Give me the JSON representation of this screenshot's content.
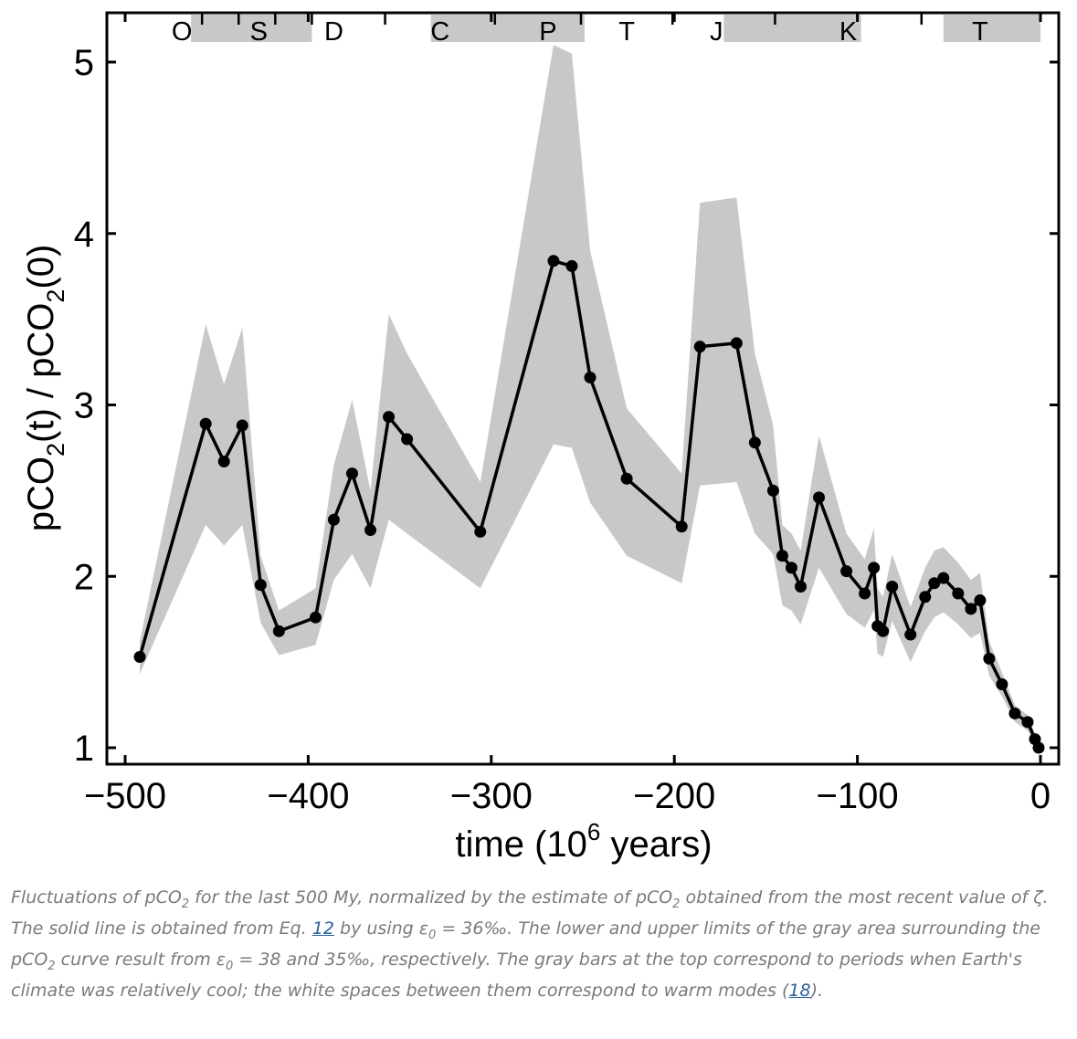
{
  "chart_data": {
    "type": "line",
    "xlabel_main": "time (10",
    "xlabel_exp": "6",
    "xlabel_tail": " years)",
    "ylabel_a": "pCO",
    "ylabel_sub_a": "2",
    "ylabel_b": "(t) / pCO",
    "ylabel_sub_b": "2",
    "ylabel_c": "(0)",
    "xlim": [
      -500,
      0
    ],
    "ylim": [
      1,
      5
    ],
    "xticks": [
      -500,
      -400,
      -300,
      -200,
      -100,
      0
    ],
    "xtick_labels": [
      "−500",
      "−400",
      "−300",
      "−200",
      "−100",
      "0"
    ],
    "yticks": [
      1,
      2,
      3,
      4,
      5
    ],
    "ytick_labels": [
      "1",
      "2",
      "3",
      "4",
      "5"
    ],
    "periods": [
      {
        "label": "O",
        "x": -469
      },
      {
        "label": "S",
        "x": -427
      },
      {
        "label": "D",
        "x": -386
      },
      {
        "label": "C",
        "x": -328
      },
      {
        "label": "P",
        "x": -269
      },
      {
        "label": "T",
        "x": -226
      },
      {
        "label": "J",
        "x": -177
      },
      {
        "label": "K",
        "x": -105
      },
      {
        "label": "T",
        "x": -33
      }
    ],
    "period_boundaries": [
      -458,
      -438,
      -418,
      -398,
      -358,
      -298,
      -251,
      -201,
      -145,
      -65
    ],
    "cool_bars": [
      [
        -464,
        -398
      ],
      [
        -333,
        -249
      ],
      [
        -173,
        -98
      ],
      [
        -53,
        0
      ]
    ],
    "series": [
      {
        "x": [
          -492,
          -456,
          -446,
          -436,
          -426,
          -416,
          -396,
          -386,
          -376,
          -366,
          -356,
          -346,
          -306,
          -266,
          -256,
          -246,
          -226,
          -196,
          -186,
          -166,
          -156,
          -146,
          -141,
          -136,
          -131,
          -121,
          -106,
          -96,
          -91,
          -89,
          -86,
          -81,
          -71,
          -63,
          -58,
          -53,
          -45,
          -38,
          -33,
          -28,
          -21,
          -14,
          -7,
          -3,
          -1
        ],
        "y": [
          1.53,
          2.89,
          2.67,
          2.88,
          1.95,
          1.68,
          1.76,
          2.33,
          2.6,
          2.27,
          2.93,
          2.8,
          2.26,
          3.84,
          3.81,
          3.16,
          2.57,
          2.29,
          3.34,
          3.36,
          2.78,
          2.5,
          2.12,
          2.05,
          1.94,
          2.46,
          2.03,
          1.9,
          2.05,
          1.71,
          1.68,
          1.94,
          1.66,
          1.88,
          1.96,
          1.99,
          1.9,
          1.81,
          1.86,
          1.52,
          1.37,
          1.2,
          1.15,
          1.05,
          1.0
        ]
      }
    ],
    "uncertainty_band": {
      "upper": [
        [
          -492,
          1.62
        ],
        [
          -456,
          3.47
        ],
        [
          -446,
          3.12
        ],
        [
          -436,
          3.45
        ],
        [
          -426,
          2.12
        ],
        [
          -416,
          1.8
        ],
        [
          -396,
          1.93
        ],
        [
          -386,
          2.65
        ],
        [
          -376,
          3.03
        ],
        [
          -366,
          2.5
        ],
        [
          -356,
          3.53
        ],
        [
          -346,
          3.3
        ],
        [
          -306,
          2.55
        ],
        [
          -266,
          5.1
        ],
        [
          -256,
          5.05
        ],
        [
          -246,
          3.9
        ],
        [
          -226,
          2.98
        ],
        [
          -196,
          2.6
        ],
        [
          -186,
          4.18
        ],
        [
          -166,
          4.21
        ],
        [
          -156,
          3.3
        ],
        [
          -146,
          2.88
        ],
        [
          -141,
          2.3
        ],
        [
          -136,
          2.25
        ],
        [
          -131,
          2.15
        ],
        [
          -121,
          2.82
        ],
        [
          -106,
          2.25
        ],
        [
          -96,
          2.1
        ],
        [
          -91,
          2.28
        ],
        [
          -89,
          1.93
        ],
        [
          -86,
          1.88
        ],
        [
          -81,
          2.13
        ],
        [
          -71,
          1.82
        ],
        [
          -63,
          2.05
        ],
        [
          -58,
          2.15
        ],
        [
          -53,
          2.17
        ],
        [
          -45,
          2.08
        ],
        [
          -38,
          1.98
        ],
        [
          -33,
          2.02
        ],
        [
          -28,
          1.62
        ],
        [
          -21,
          1.44
        ],
        [
          -14,
          1.25
        ],
        [
          -7,
          1.19
        ],
        [
          -3,
          1.08
        ],
        [
          -1,
          1.02
        ]
      ],
      "lower": [
        [
          -492,
          1.43
        ],
        [
          -456,
          2.3
        ],
        [
          -446,
          2.18
        ],
        [
          -436,
          2.3
        ],
        [
          -426,
          1.73
        ],
        [
          -416,
          1.54
        ],
        [
          -396,
          1.6
        ],
        [
          -386,
          1.98
        ],
        [
          -376,
          2.13
        ],
        [
          -366,
          1.93
        ],
        [
          -356,
          2.33
        ],
        [
          -346,
          2.25
        ],
        [
          -306,
          1.93
        ],
        [
          -266,
          2.77
        ],
        [
          -256,
          2.75
        ],
        [
          -246,
          2.43
        ],
        [
          -226,
          2.12
        ],
        [
          -196,
          1.96
        ],
        [
          -186,
          2.53
        ],
        [
          -166,
          2.55
        ],
        [
          -156,
          2.25
        ],
        [
          -146,
          2.13
        ],
        [
          -141,
          1.83
        ],
        [
          -136,
          1.8
        ],
        [
          -131,
          1.72
        ],
        [
          -121,
          2.05
        ],
        [
          -106,
          1.78
        ],
        [
          -96,
          1.7
        ],
        [
          -91,
          1.8
        ],
        [
          -89,
          1.55
        ],
        [
          -86,
          1.53
        ],
        [
          -81,
          1.74
        ],
        [
          -71,
          1.5
        ],
        [
          -63,
          1.68
        ],
        [
          -58,
          1.76
        ],
        [
          -53,
          1.79
        ],
        [
          -45,
          1.72
        ],
        [
          -38,
          1.64
        ],
        [
          -33,
          1.67
        ],
        [
          -28,
          1.42
        ],
        [
          -21,
          1.3
        ],
        [
          -14,
          1.15
        ],
        [
          -7,
          1.1
        ],
        [
          -3,
          1.02
        ],
        [
          -1,
          0.98
        ]
      ]
    },
    "grid": false,
    "legend": "none"
  },
  "caption": {
    "t1": "Fluctuations of pCO",
    "t1_sub": "2",
    "t2": " for the last 500 My, normalized by the estimate of pCO",
    "t2_sub": "2",
    "t3": " obtained from the most recent value of ζ. The solid line is obtained from Eq. ",
    "eq_link": "12",
    "t4": " by using ε",
    "t4_sub": "0",
    "t5": " = 36‰. The lower and upper limits of the gray area surrounding the pCO",
    "t5_sub": "2",
    "t6": " curve result from ε",
    "t6_sub": "0",
    "t7": " = 38 and 35‰, respectively. The gray bars at the top correspond to periods when Earth's climate was relatively cool; the white spaces between them correspond to warm modes (",
    "ref_link": "18",
    "t8": ")."
  },
  "colors": {
    "band": "#c8c8c8",
    "bar": "#c8c8c8",
    "line": "#000000",
    "caption_text": "#7a7a7a",
    "link": "#2b5f9e"
  }
}
